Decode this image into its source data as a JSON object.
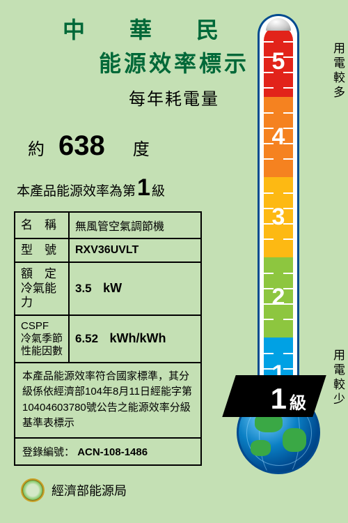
{
  "header": {
    "country": "中　華　民　國",
    "label_title": "能源效率標示",
    "subtitle": "每年耗電量"
  },
  "consumption": {
    "approx": "約",
    "value": "638",
    "unit": "度"
  },
  "rating_sentence": {
    "prefix": "本產品能源效率為第",
    "number": "1",
    "suffix": "級"
  },
  "spec": {
    "name_label": "名　稱",
    "name_value": "無風管空氣調節機",
    "model_label": "型　號",
    "model_value": "RXV36UVLT",
    "capacity_label": "額　定\n冷氣能力",
    "capacity_value": "3.5",
    "capacity_unit": "kW",
    "cspf_label": "CSPF\n冷氣季節\n性能因數",
    "cspf_value": "6.52",
    "cspf_unit": "kWh/kWh"
  },
  "compliance": "本產品能源效率符合國家標準，其分級係依經濟部104年8月11日經能字第10404603780號公告之能源效率分級基準表標示",
  "registration": {
    "label": "登錄編號：",
    "value": "ACN-108-1486"
  },
  "agency": "經濟部能源局",
  "thermometer": {
    "segments": [
      {
        "label": "5",
        "color": "#e2231a"
      },
      {
        "label": "4",
        "color": "#f58220"
      },
      {
        "label": "3",
        "color": "#fdb913"
      },
      {
        "label": "2",
        "color": "#8dc63f"
      },
      {
        "label": "1",
        "color": "#00a1e4"
      }
    ],
    "top_label": "用電較多",
    "bottom_label": "用電較少",
    "tick_count_per_segment": 5
  },
  "grade_badge": {
    "number": "1",
    "suffix": "級"
  },
  "colors": {
    "background": "#c4e0b4",
    "title": "#006838",
    "border": "#004a8f"
  }
}
